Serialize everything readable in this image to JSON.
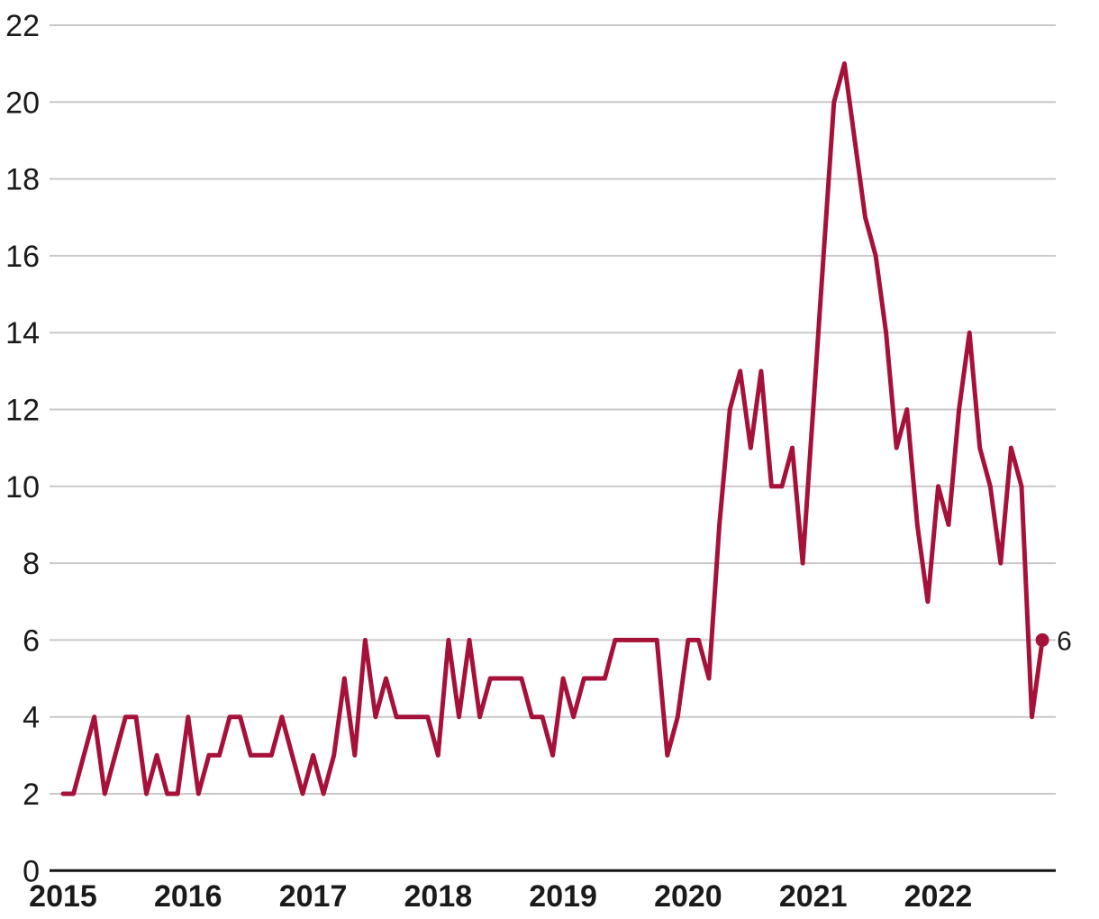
{
  "chart_data": {
    "type": "line",
    "title": "",
    "grid": "horizontal",
    "legend": "none",
    "ylim": [
      0,
      22
    ],
    "y_ticks": [
      0,
      2,
      4,
      6,
      8,
      10,
      12,
      14,
      16,
      18,
      20,
      22
    ],
    "x_unit": "month",
    "x_range_note": "monthly points from January 2015 to November 2022",
    "colors": {
      "line": "#a6113a",
      "marker": "#a6113a",
      "grid": "#c9c9c9",
      "axis": "#141414",
      "tick_label": "#1a1a1a",
      "end_label": "#1a1a1a"
    },
    "end_point_label": "6",
    "years": [
      {
        "label": "2015",
        "values": [
          2,
          2,
          3,
          4,
          2,
          3,
          4,
          4,
          2,
          3,
          2,
          2
        ]
      },
      {
        "label": "2016",
        "values": [
          4,
          2,
          3,
          3,
          4,
          4,
          3,
          3,
          3,
          4,
          3,
          2
        ]
      },
      {
        "label": "2017",
        "values": [
          3,
          2,
          3,
          5,
          3,
          6,
          4,
          5,
          4,
          4,
          4,
          4
        ]
      },
      {
        "label": "2018",
        "values": [
          3,
          6,
          4,
          6,
          4,
          5,
          5,
          5,
          5,
          4,
          4,
          3
        ]
      },
      {
        "label": "2019",
        "values": [
          5,
          4,
          5,
          5,
          5,
          6,
          6,
          6,
          6,
          6,
          3,
          4
        ]
      },
      {
        "label": "2020",
        "values": [
          6,
          6,
          5,
          9,
          12,
          13,
          11,
          13,
          10,
          10,
          11,
          8
        ]
      },
      {
        "label": "2021",
        "values": [
          12,
          16,
          20,
          21,
          19,
          17,
          16,
          14,
          11,
          12,
          9,
          7
        ]
      },
      {
        "label": "2022",
        "values": [
          10,
          9,
          12,
          14,
          11,
          10,
          8,
          11,
          10,
          4,
          6
        ]
      }
    ]
  }
}
